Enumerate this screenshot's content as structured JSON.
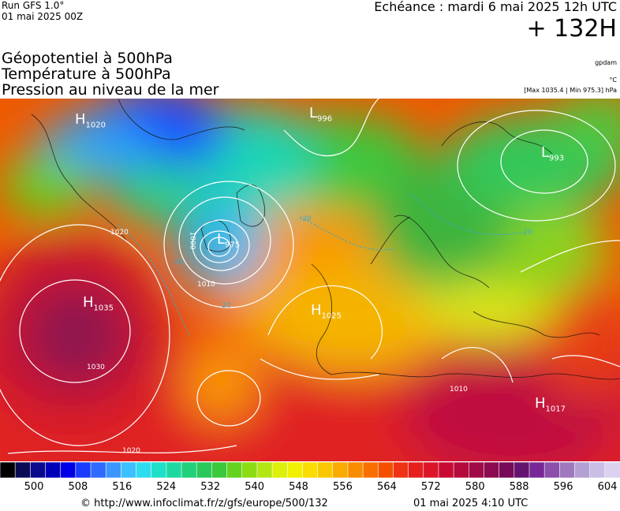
{
  "header": {
    "run": "Run GFS 1.0°",
    "run_date": "01 mai 2025 00Z",
    "echeance": "Echéance : mardi 6 mai 2025 12h UTC",
    "lead": "+ 132H"
  },
  "titles": [
    "Géopotentiel à 500hPa",
    "Température à 500hPa",
    "Pression au niveau de la mer"
  ],
  "units": {
    "geopotential": "gpdam",
    "temperature": "°C",
    "pressure": "[Max 1035.4 | Min 975.3] hPa"
  },
  "pressure_centers": [
    {
      "type": "H",
      "value": "1020"
    },
    {
      "type": "L",
      "value": "996"
    },
    {
      "type": "L",
      "value": "993"
    },
    {
      "type": "L",
      "value": "975"
    },
    {
      "type": "H",
      "value": "1035"
    },
    {
      "type": "H",
      "value": "1025"
    },
    {
      "type": "H",
      "value": "1017"
    }
  ],
  "isobar_labels": [
    "1000",
    "1010",
    "1020",
    "1030",
    "1020",
    "1010"
  ],
  "isotherm_labels": [
    "-20",
    "-20",
    "-20",
    "-20"
  ],
  "colorbar": {
    "ticks": [
      "500",
      "508",
      "516",
      "524",
      "532",
      "540",
      "548",
      "556",
      "564",
      "572",
      "580",
      "588",
      "596",
      "604"
    ],
    "colors": [
      "#000000",
      "#0b0b55",
      "#0a0a8c",
      "#0000b8",
      "#0000e6",
      "#1a3cff",
      "#2f6bff",
      "#3c96ff",
      "#3cc0ff",
      "#2cdcef",
      "#1ee0c8",
      "#1ed8a0",
      "#22d07a",
      "#28c85a",
      "#3cc83c",
      "#64d21e",
      "#8cdc14",
      "#b4e614",
      "#dcf00a",
      "#f0f000",
      "#fadc00",
      "#fac800",
      "#faaa00",
      "#fa8c00",
      "#fa6e00",
      "#f55000",
      "#f03214",
      "#e61e1e",
      "#dc1428",
      "#c80a32",
      "#b40a3c",
      "#a00a46",
      "#8c0a50",
      "#780a5a",
      "#64146e",
      "#782896",
      "#8c50aa",
      "#a078be",
      "#b4a0d2",
      "#c8bee6",
      "#dcd2f0"
    ]
  },
  "footer": {
    "url": "© http://www.infoclimat.fr/z/gfs/europe/500/132",
    "generated": "01 mai 2025  4:10 UTC"
  }
}
